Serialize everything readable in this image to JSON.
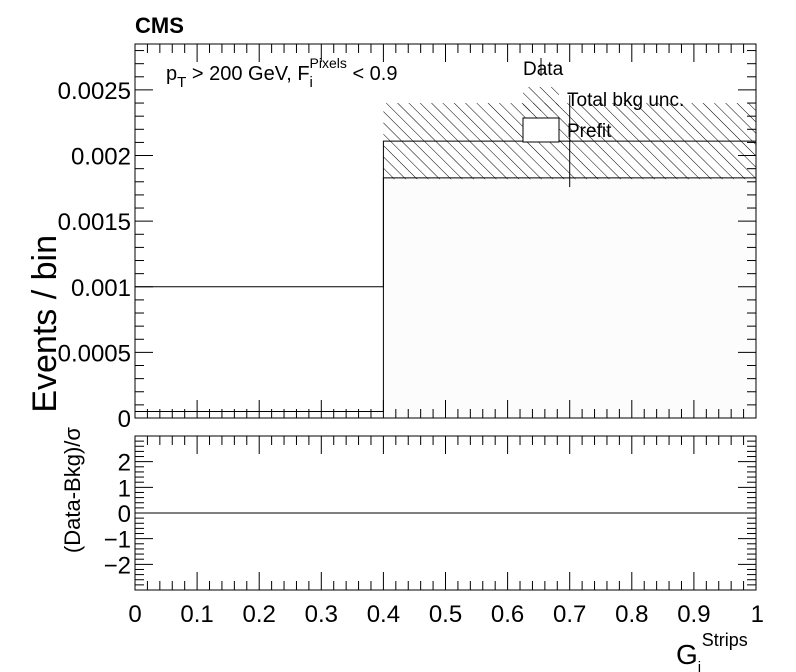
{
  "chart_data": [
    {
      "type": "bar",
      "panel": "main",
      "brand": "CMS",
      "cut_label": {
        "p": "p",
        "p_sub": "T",
        "mid": " > 200 GeV, F",
        "f_sup": "Pixels",
        "f_sub": "i",
        "end": " < 0.9"
      },
      "ylabel": "Events / bin",
      "xlim": [
        0,
        1
      ],
      "ylim": [
        0,
        0.00285
      ],
      "bin_edges": [
        0,
        0.4,
        1.0
      ],
      "series": [
        {
          "name": "Prefit",
          "values": [
            5e-05,
            0.00183
          ],
          "color": "#fcfcfc"
        }
      ],
      "total_prefit": [
        0.001,
        0.00211
      ],
      "bkg_unc_band": {
        "name": "Total bkg unc.",
        "low": [
          0.001,
          0.00182
        ],
        "high": [
          0.001,
          0.0024
        ]
      },
      "data": {
        "name": "Data",
        "x": [
          0.7
        ],
        "y": [
          0.00211
        ],
        "yerr": [
          0.00035
        ]
      },
      "y_ticks": [
        {
          "value": 0,
          "label": "0"
        },
        {
          "value": 0.0005,
          "label": "0.0005"
        },
        {
          "value": 0.001,
          "label": "0.001"
        },
        {
          "value": 0.0015,
          "label": "0.0015"
        },
        {
          "value": 0.002,
          "label": "0.002"
        },
        {
          "value": 0.0025,
          "label": "0.0025"
        }
      ],
      "legend": {
        "placement": "top-right",
        "entries": [
          {
            "label": "Data",
            "style": "marker"
          },
          {
            "label": "Total bkg unc.",
            "style": "hatch"
          },
          {
            "label": "Prefit",
            "style": "box"
          }
        ]
      }
    },
    {
      "type": "line",
      "panel": "ratio",
      "ylabel": "(Data-Bkg)/σ",
      "xlim": [
        0,
        1
      ],
      "ylim": [
        -3,
        3
      ],
      "x": [
        0,
        1
      ],
      "y": [
        0,
        0
      ],
      "y_ticks": [
        {
          "value": -2,
          "label": "−2"
        },
        {
          "value": -1,
          "label": "−1"
        },
        {
          "value": 0,
          "label": "0"
        },
        {
          "value": 1,
          "label": "1"
        },
        {
          "value": 2,
          "label": "2"
        }
      ],
      "x_ticks": [
        {
          "value": 0,
          "label": "0"
        },
        {
          "value": 0.1,
          "label": "0.1"
        },
        {
          "value": 0.2,
          "label": "0.2"
        },
        {
          "value": 0.3,
          "label": "0.3"
        },
        {
          "value": 0.4,
          "label": "0.4"
        },
        {
          "value": 0.5,
          "label": "0.5"
        },
        {
          "value": 0.6,
          "label": "0.6"
        },
        {
          "value": 0.7,
          "label": "0.7"
        },
        {
          "value": 0.8,
          "label": "0.8"
        },
        {
          "value": 0.9,
          "label": "0.9"
        },
        {
          "value": 1,
          "label": "1"
        }
      ],
      "xlabel": {
        "base": "G",
        "sub": "i",
        "sup": "Strips"
      }
    }
  ],
  "colors": {
    "axis": "#000000",
    "prefit_fill": "#fcfcfc",
    "line": "#000000"
  }
}
